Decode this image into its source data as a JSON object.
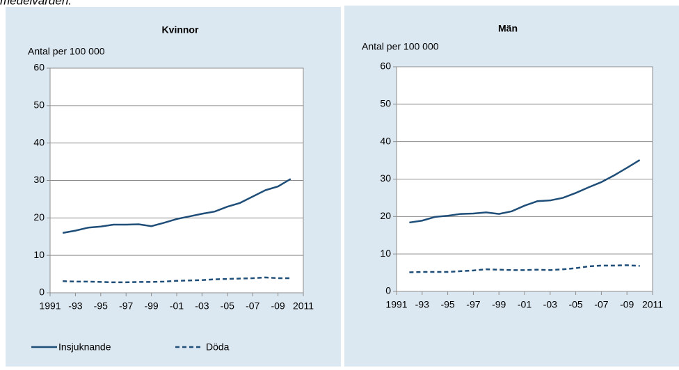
{
  "caption": "medelvärden.",
  "chart_data": [
    {
      "type": "line",
      "title": "Kvinnor",
      "y_label": "Antal per 100 000",
      "x": [
        1992,
        1993,
        1994,
        1995,
        1996,
        1997,
        1998,
        1999,
        2000,
        2001,
        2002,
        2003,
        2004,
        2005,
        2006,
        2007,
        2008,
        2009,
        2010
      ],
      "series": [
        {
          "name": "Insjuknande",
          "color": "#1f4e79",
          "dash": false,
          "values": [
            16,
            16.6,
            17.4,
            17.7,
            18.2,
            18.2,
            18.3,
            17.8,
            18.7,
            19.7,
            20.4,
            21.1,
            21.7,
            23,
            24,
            25.7,
            27.4,
            28.4,
            30.4
          ]
        },
        {
          "name": "Döda",
          "color": "#1f4e79",
          "dash": true,
          "values": [
            3.1,
            3.0,
            3.0,
            2.9,
            2.8,
            2.8,
            2.9,
            2.9,
            3.0,
            3.2,
            3.3,
            3.4,
            3.6,
            3.7,
            3.8,
            3.9,
            4.1,
            3.9,
            3.9
          ]
        }
      ],
      "xlim": [
        1991,
        2011
      ],
      "xticks": [
        1991,
        {
          "value": 1993,
          "label": "-93"
        },
        {
          "value": 1995,
          "label": "-95"
        },
        {
          "value": 1997,
          "label": "-97"
        },
        {
          "value": 1999,
          "label": "-99"
        },
        {
          "value": 2001,
          "label": "-01"
        },
        {
          "value": 2003,
          "label": "-03"
        },
        {
          "value": 2005,
          "label": "-05"
        },
        {
          "value": 2007,
          "label": "-07"
        },
        {
          "value": 2009,
          "label": "-09"
        },
        2011
      ],
      "ylim": [
        0,
        60
      ],
      "yticks": [
        0,
        10,
        20,
        30,
        40,
        50,
        60
      ],
      "grid": true
    },
    {
      "type": "line",
      "title": "Män",
      "y_label": "Antal per 100 000",
      "x": [
        1992,
        1993,
        1994,
        1995,
        1996,
        1997,
        1998,
        1999,
        2000,
        2001,
        2002,
        2003,
        2004,
        2005,
        2006,
        2007,
        2008,
        2009,
        2010
      ],
      "series": [
        {
          "name": "Insjuknande",
          "color": "#1f4e79",
          "dash": false,
          "values": [
            18.4,
            18.9,
            19.9,
            20.2,
            20.7,
            20.8,
            21.1,
            20.7,
            21.4,
            22.9,
            24.1,
            24.3,
            25,
            26.3,
            27.8,
            29.2,
            31,
            33,
            35.1
          ]
        },
        {
          "name": "Döda",
          "color": "#1f4e79",
          "dash": true,
          "values": [
            5.1,
            5.2,
            5.2,
            5.2,
            5.4,
            5.6,
            5.9,
            5.8,
            5.7,
            5.7,
            5.8,
            5.7,
            5.9,
            6.2,
            6.7,
            6.9,
            6.9,
            7.0,
            6.8
          ]
        }
      ],
      "xlim": [
        1991,
        2011
      ],
      "xticks": [
        1991,
        {
          "value": 1993,
          "label": "-93"
        },
        {
          "value": 1995,
          "label": "-95"
        },
        {
          "value": 1997,
          "label": "-97"
        },
        {
          "value": 1999,
          "label": "-99"
        },
        {
          "value": 2001,
          "label": "-01"
        },
        {
          "value": 2003,
          "label": "-03"
        },
        {
          "value": 2005,
          "label": "-05"
        },
        {
          "value": 2007,
          "label": "-07"
        },
        {
          "value": 2009,
          "label": "-09"
        },
        2011
      ],
      "ylim": [
        0,
        60
      ],
      "yticks": [
        0,
        10,
        20,
        30,
        40,
        50,
        60
      ],
      "grid": true
    }
  ]
}
